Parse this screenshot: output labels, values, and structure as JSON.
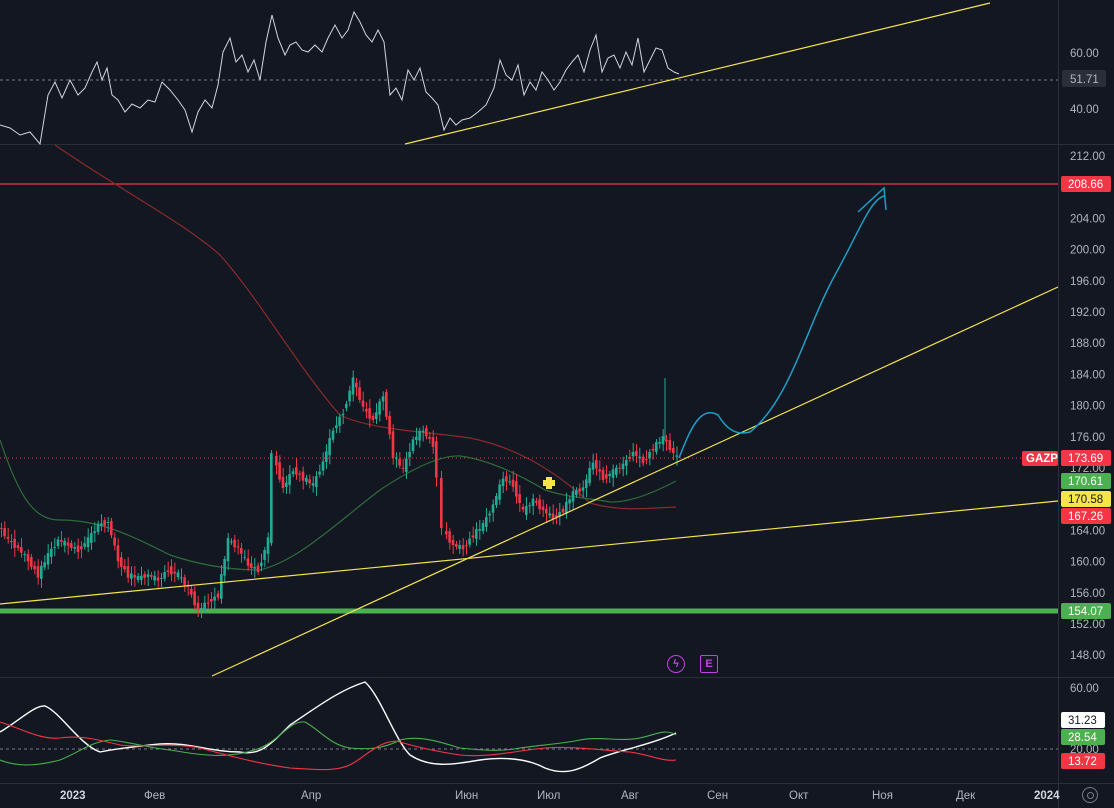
{
  "symbol": "GAZP",
  "colors": {
    "up": "#22ab94",
    "down": "#f23645",
    "yellow": "#f5e44a",
    "green_level": "#4caf50",
    "red_level": "#f23645",
    "ma_slow": "#8b2a2a",
    "ma_fast": "#2e6b3a",
    "forecast": "#1e9ec6",
    "rsi": "#d1d4dc",
    "adx": "#ffffff",
    "di_plus": "#4caf50",
    "di_minus": "#f23645"
  },
  "price_axis": {
    "ticks": [
      "212.00",
      "208.00",
      "204.00",
      "200.00",
      "196.00",
      "192.00",
      "188.00",
      "184.00",
      "180.00",
      "176.00",
      "172.00",
      "168.00",
      "164.00",
      "160.00",
      "156.00",
      "152.00",
      "148.00"
    ],
    "tags": {
      "resistance": "208.66",
      "symbol_tag": "GAZP",
      "last_price": "173.69",
      "ma_fast_val": "170.61",
      "yellow_val": "170.58",
      "ma_slow_val": "167.26",
      "support": "154.07"
    }
  },
  "rsi_axis": {
    "ticks": [
      "60.00",
      "40.00"
    ],
    "current": "51.71"
  },
  "adx_axis": {
    "ticks": [
      "60.00",
      "20.00"
    ],
    "adx": "31.23",
    "di_plus": "28.54",
    "di_minus": "13.72"
  },
  "time_axis": [
    "2023",
    "Фев",
    "Апр",
    "Июн",
    "Июл",
    "Авг",
    "Сен",
    "Окт",
    "Ноя",
    "Дек",
    "2024"
  ],
  "events": {
    "dividend": "ϟ",
    "earnings": "E"
  },
  "chart_data": {
    "type": "candlestick",
    "series": [
      {
        "name": "GAZP",
        "points": [
          {
            "date": "2023-01-01",
            "close": 167.5
          },
          {
            "date": "2023-01-15",
            "close": 162.0
          },
          {
            "date": "2023-02-01",
            "close": 165.5
          },
          {
            "date": "2023-02-15",
            "close": 160.0
          },
          {
            "date": "2023-03-01",
            "close": 154.0
          },
          {
            "date": "2023-03-15",
            "close": 162.0
          },
          {
            "date": "2023-04-01",
            "close": 173.0
          },
          {
            "date": "2023-04-15",
            "close": 179.0
          },
          {
            "date": "2023-04-25",
            "close": 184.0
          },
          {
            "date": "2023-05-10",
            "close": 177.0
          },
          {
            "date": "2023-05-25",
            "close": 176.0
          },
          {
            "date": "2023-06-01",
            "close": 165.0
          },
          {
            "date": "2023-06-10",
            "close": 162.0
          },
          {
            "date": "2023-06-25",
            "close": 169.0
          },
          {
            "date": "2023-07-10",
            "close": 167.0
          },
          {
            "date": "2023-07-25",
            "close": 172.0
          },
          {
            "date": "2023-08-05",
            "close": 174.0
          },
          {
            "date": "2023-08-15",
            "close": 173.69
          }
        ]
      }
    ],
    "ylim": [
      146,
      214
    ],
    "levels": [
      208.66,
      154.07
    ]
  }
}
